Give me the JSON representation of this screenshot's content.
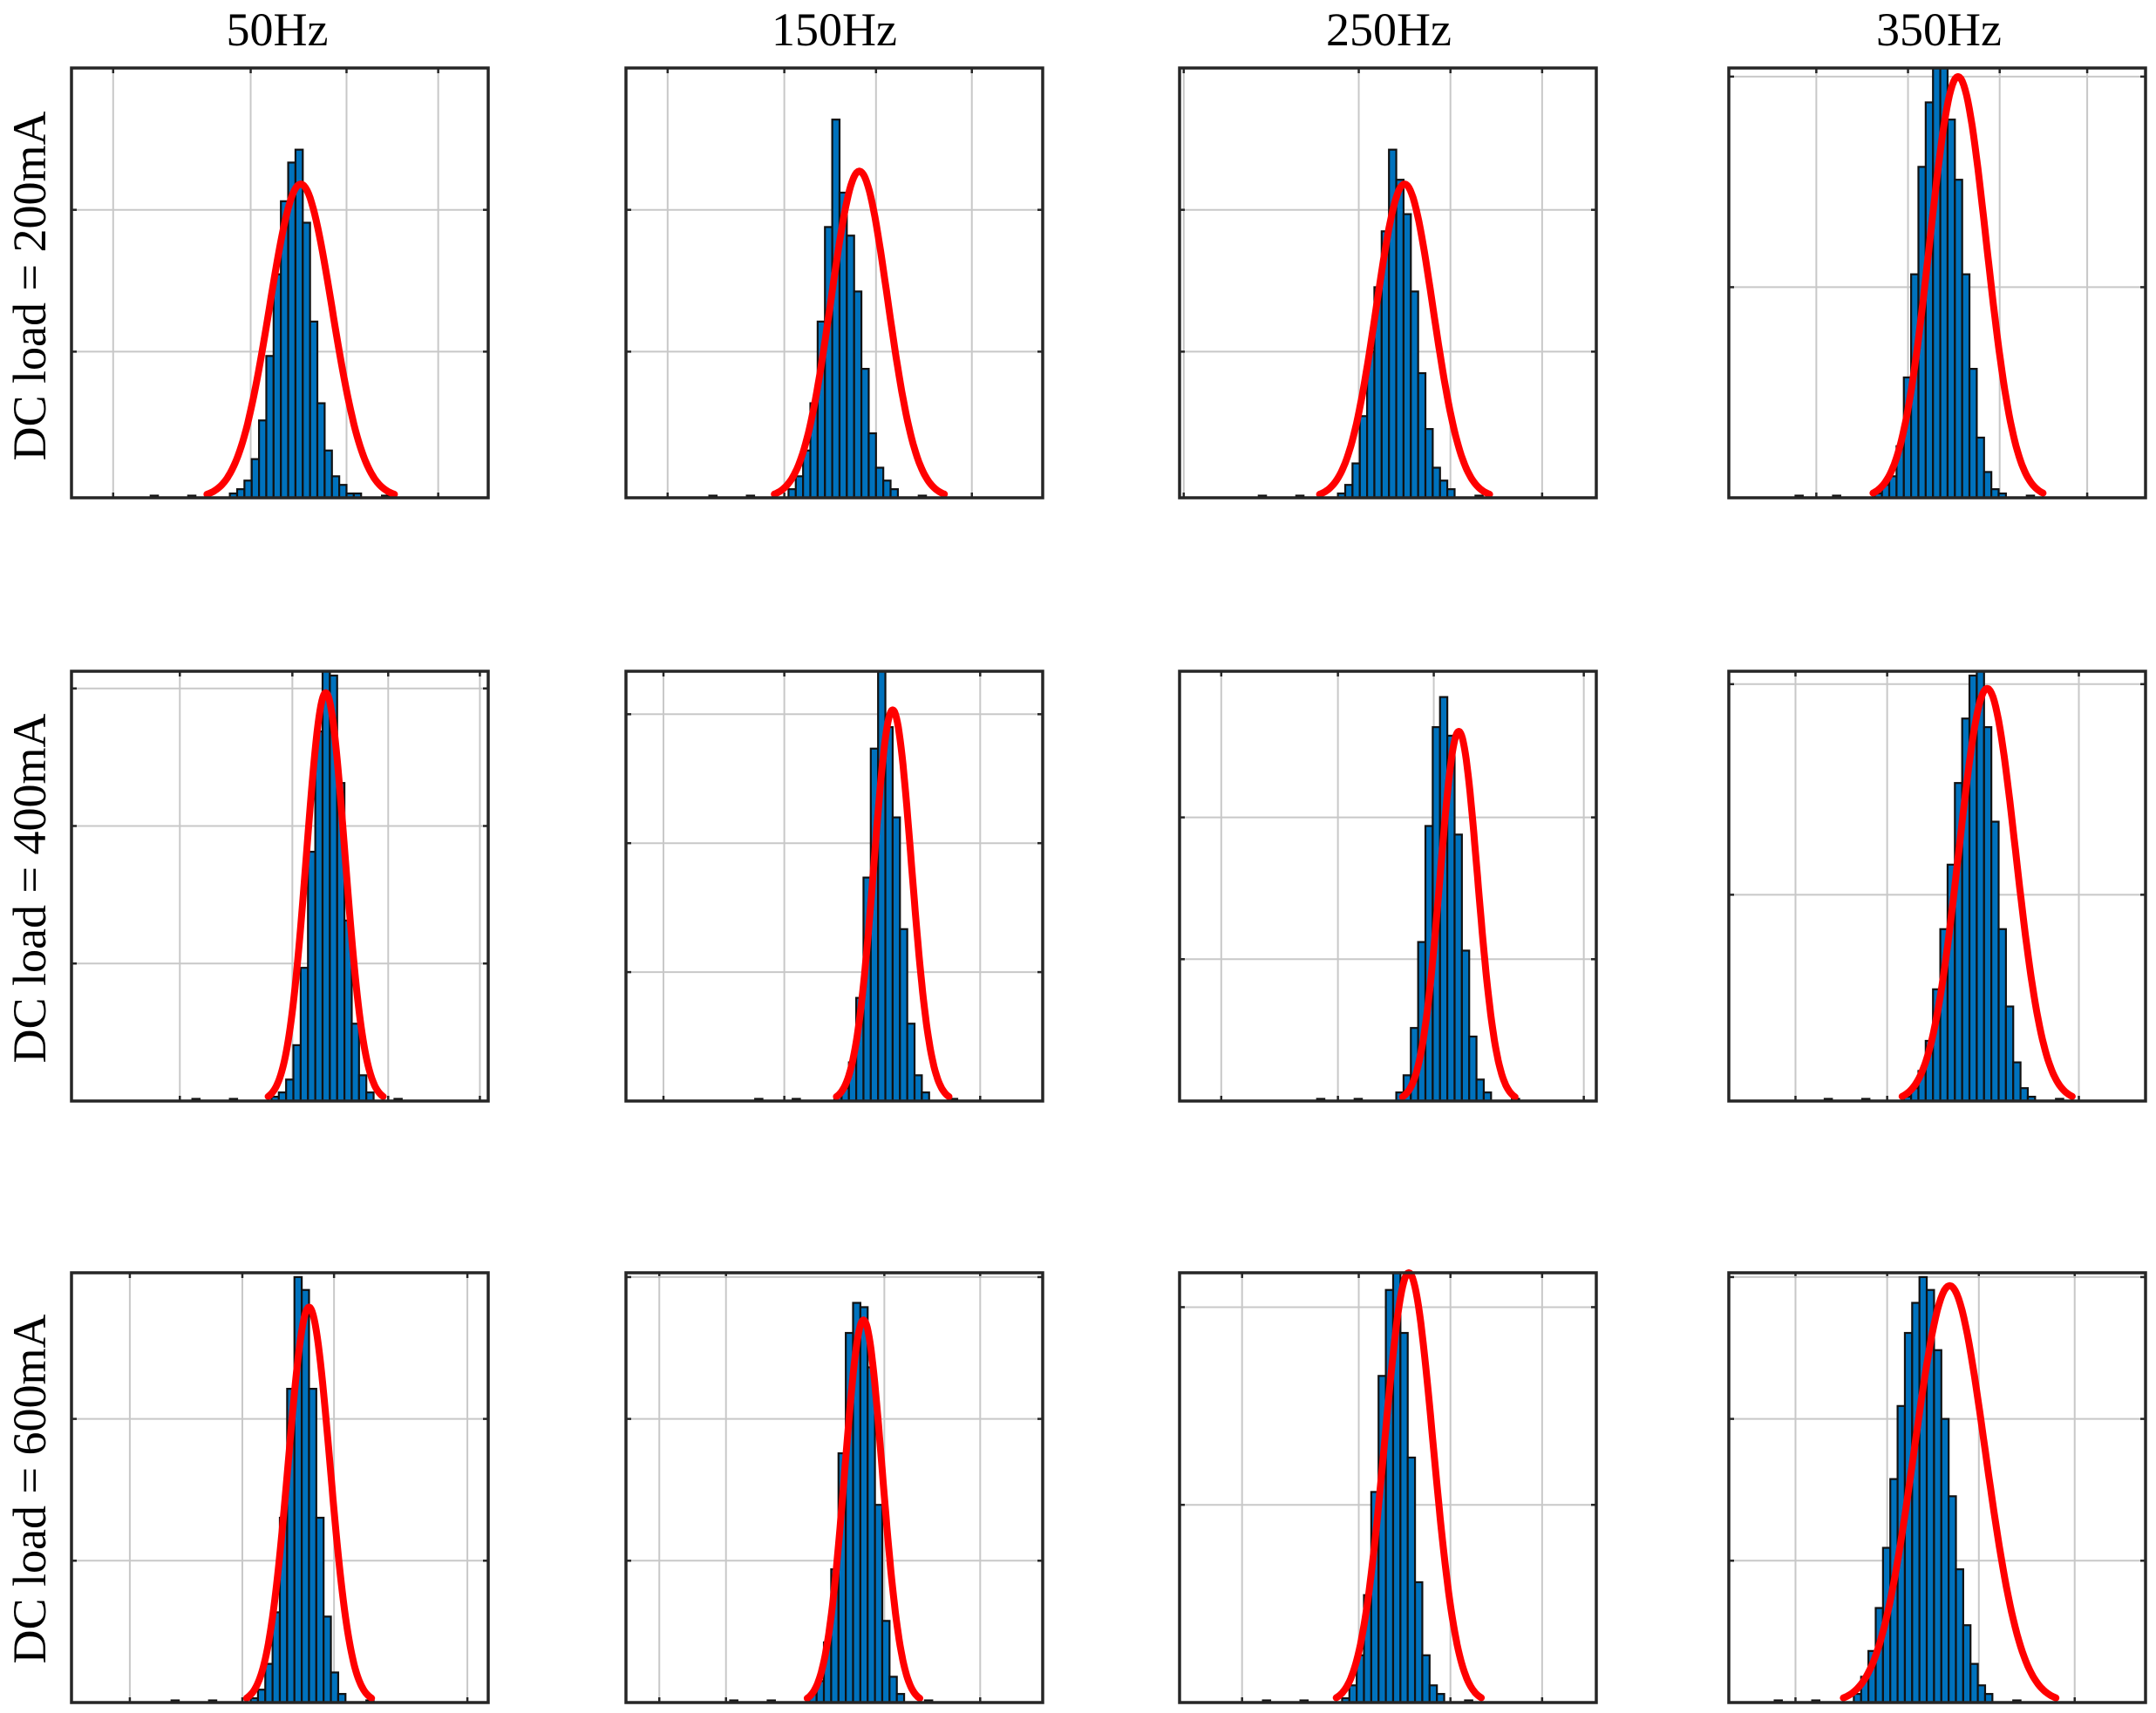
{
  "colors": {
    "bar": "#0072BD",
    "bar_edge": "#111111",
    "fit": "#FF0000",
    "grid": "#C8C8C8",
    "axis": "#262626"
  },
  "chart_data": {
    "type": "histogram-grid",
    "description_series": [
      "histogram",
      "gaussian fit"
    ],
    "column_labels": [
      "50Hz",
      "150Hz",
      "250Hz",
      "350Hz"
    ],
    "row_labels": [
      "DC load = 200mA",
      "DC load = 400mA",
      "DC load = 600mA"
    ],
    "xlim": [
      0,
      1
    ],
    "ylim": [
      0,
      1
    ],
    "tick_labels_visible": false,
    "grid": true,
    "panels": [
      {
        "row": 0,
        "col": 0,
        "xgrid": [
          0.1,
          0.43,
          0.66,
          0.88
        ],
        "ygrid": [
          0.34,
          0.67,
          1.0
        ],
        "mu": 0.55,
        "sigma": 0.075,
        "peak": 0.73,
        "bar_start": 0.38,
        "bar_width": 0.0175,
        "values": [
          0.01,
          0.02,
          0.04,
          0.09,
          0.18,
          0.33,
          0.52,
          0.69,
          0.78,
          0.81,
          0.64,
          0.41,
          0.22,
          0.11,
          0.05,
          0.03,
          0.01,
          0.01
        ]
      },
      {
        "row": 0,
        "col": 1,
        "xgrid": [
          0.1,
          0.38,
          0.6,
          0.83
        ],
        "ygrid": [
          0.34,
          0.67,
          1.0
        ],
        "mu": 0.56,
        "sigma": 0.068,
        "peak": 0.76,
        "bar_start": 0.39,
        "bar_width": 0.0175,
        "values": [
          0.02,
          0.05,
          0.11,
          0.22,
          0.41,
          0.63,
          0.88,
          0.71,
          0.61,
          0.48,
          0.3,
          0.15,
          0.07,
          0.04,
          0.02
        ]
      },
      {
        "row": 0,
        "col": 2,
        "xgrid": [
          0.01,
          0.43,
          0.65,
          0.87
        ],
        "ygrid": [
          0.34,
          0.67,
          1.0
        ],
        "mu": 0.54,
        "sigma": 0.068,
        "peak": 0.73,
        "bar_start": 0.38,
        "bar_width": 0.0175,
        "values": [
          0.01,
          0.03,
          0.08,
          0.19,
          0.34,
          0.49,
          0.62,
          0.81,
          0.74,
          0.66,
          0.48,
          0.29,
          0.16,
          0.07,
          0.04,
          0.02
        ]
      },
      {
        "row": 0,
        "col": 3,
        "xgrid": [
          0.21,
          0.43,
          0.65,
          0.86
        ],
        "ygrid": [
          0.49,
          0.98
        ],
        "mu": 0.55,
        "sigma": 0.068,
        "peak": 0.98,
        "bar_start": 0.35,
        "bar_width": 0.0175,
        "values": [
          0.01,
          0.03,
          0.05,
          0.12,
          0.28,
          0.52,
          0.77,
          0.92,
          1.0,
          1.0,
          0.88,
          0.74,
          0.52,
          0.3,
          0.14,
          0.06,
          0.02,
          0.01
        ]
      },
      {
        "row": 1,
        "col": 0,
        "xgrid": [
          0.26,
          0.53,
          0.76,
          0.98
        ],
        "ygrid": [
          0.32,
          0.64,
          0.96
        ],
        "mu": 0.61,
        "sigma": 0.046,
        "peak": 0.95,
        "bar_start": 0.48,
        "bar_width": 0.0175,
        "values": [
          0.01,
          0.02,
          0.05,
          0.13,
          0.31,
          0.58,
          0.86,
          1.0,
          0.99,
          0.74,
          0.42,
          0.18,
          0.06,
          0.02
        ]
      },
      {
        "row": 1,
        "col": 1,
        "xgrid": [
          0.09,
          0.38,
          0.62,
          0.85
        ],
        "ygrid": [
          0.3,
          0.6,
          0.9
        ],
        "mu": 0.64,
        "sigma": 0.045,
        "peak": 0.91,
        "bar_start": 0.5,
        "bar_width": 0.0175,
        "values": [
          0.01,
          0.03,
          0.09,
          0.24,
          0.52,
          0.82,
          1.0,
          0.87,
          0.66,
          0.4,
          0.18,
          0.06,
          0.02
        ]
      },
      {
        "row": 1,
        "col": 2,
        "xgrid": [
          0.1,
          0.38,
          0.61,
          0.97
        ],
        "ygrid": [
          0.33,
          0.66
        ],
        "mu": 0.67,
        "sigma": 0.045,
        "peak": 0.86,
        "bar_start": 0.52,
        "bar_width": 0.0175,
        "values": [
          0.02,
          0.06,
          0.17,
          0.37,
          0.64,
          0.87,
          0.94,
          0.85,
          0.62,
          0.35,
          0.15,
          0.05,
          0.02
        ]
      },
      {
        "row": 1,
        "col": 3,
        "xgrid": [
          0.16,
          0.38,
          0.6,
          0.84
        ],
        "ygrid": [
          0.48,
          0.97
        ],
        "mu": 0.62,
        "sigma": 0.068,
        "peak": 0.96,
        "bar_start": 0.42,
        "bar_width": 0.0175,
        "values": [
          0.01,
          0.03,
          0.07,
          0.14,
          0.26,
          0.4,
          0.55,
          0.74,
          0.89,
          0.99,
          1.0,
          0.87,
          0.65,
          0.4,
          0.22,
          0.09,
          0.03,
          0.01
        ]
      },
      {
        "row": 2,
        "col": 0,
        "xgrid": [
          0.14,
          0.41,
          0.63,
          0.95
        ],
        "ygrid": [
          0.33,
          0.66
        ],
        "mu": 0.57,
        "sigma": 0.05,
        "peak": 0.92,
        "bar_start": 0.43,
        "bar_width": 0.0175,
        "values": [
          0.01,
          0.03,
          0.09,
          0.21,
          0.43,
          0.73,
          0.99,
          0.96,
          0.73,
          0.43,
          0.2,
          0.07,
          0.02
        ]
      },
      {
        "row": 2,
        "col": 1,
        "xgrid": [
          0.08,
          0.24,
          0.62,
          0.85
        ],
        "ygrid": [
          0.33,
          0.66,
          0.99
        ],
        "mu": 0.57,
        "sigma": 0.045,
        "peak": 0.89,
        "bar_start": 0.44,
        "bar_width": 0.0175,
        "values": [
          0.02,
          0.05,
          0.14,
          0.31,
          0.58,
          0.86,
          0.93,
          0.92,
          0.78,
          0.46,
          0.19,
          0.06,
          0.02
        ]
      },
      {
        "row": 2,
        "col": 2,
        "xgrid": [
          0.15,
          0.43,
          0.65,
          0.87
        ],
        "ygrid": [
          0.46,
          0.92
        ],
        "mu": 0.55,
        "sigma": 0.058,
        "peak": 1.0,
        "bar_start": 0.39,
        "bar_width": 0.0175,
        "values": [
          0.01,
          0.04,
          0.11,
          0.25,
          0.49,
          0.76,
          0.96,
          1.0,
          0.86,
          0.57,
          0.28,
          0.11,
          0.04,
          0.02
        ]
      },
      {
        "row": 2,
        "col": 3,
        "xgrid": [
          0.16,
          0.38,
          0.6,
          0.83
        ],
        "ygrid": [
          0.33,
          0.66,
          0.99
        ],
        "mu": 0.53,
        "sigma": 0.085,
        "peak": 0.97,
        "bar_start": 0.3,
        "bar_width": 0.0175,
        "values": [
          0.02,
          0.06,
          0.12,
          0.22,
          0.36,
          0.52,
          0.69,
          0.86,
          0.93,
          0.99,
          0.96,
          0.82,
          0.66,
          0.48,
          0.31,
          0.18,
          0.09,
          0.04,
          0.02
        ]
      }
    ]
  }
}
